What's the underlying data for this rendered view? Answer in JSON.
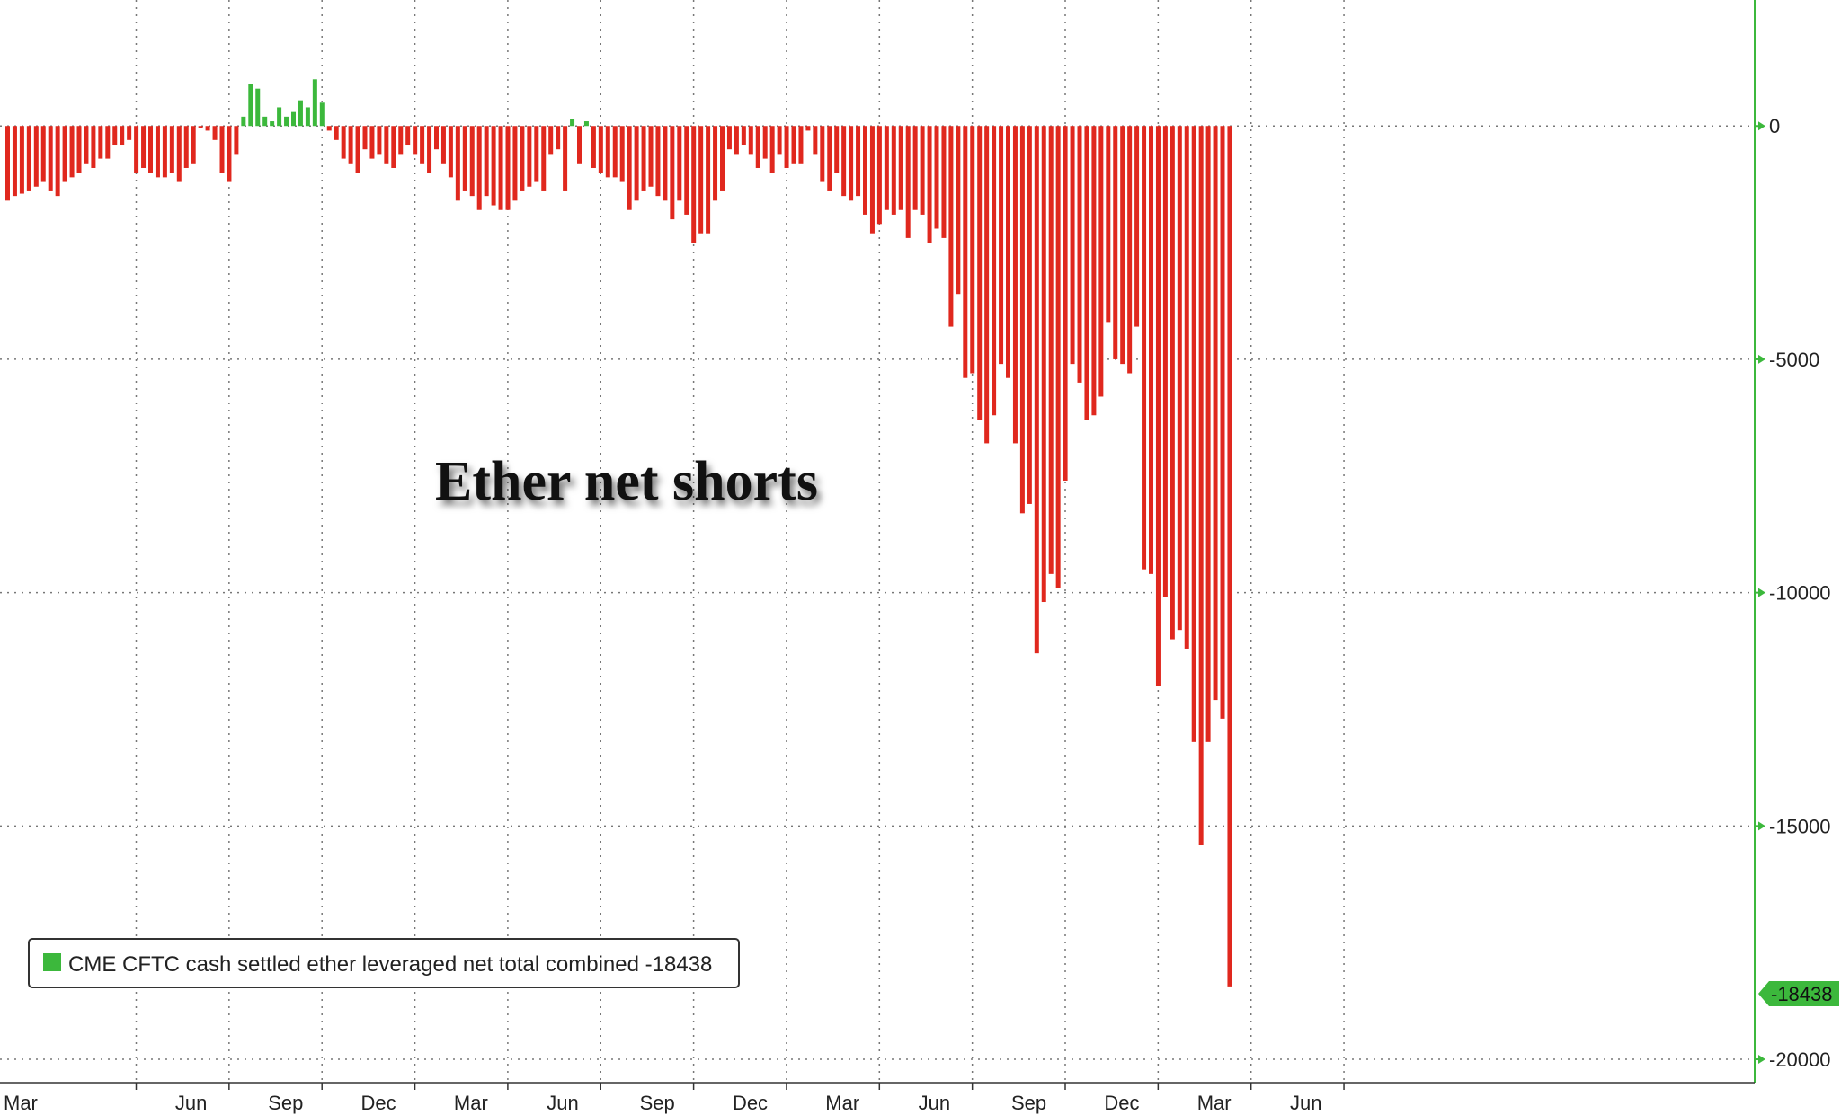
{
  "chart_data": {
    "type": "bar",
    "annotation": "Ether net shorts",
    "legend": {
      "label": "CME CFTC cash settled ether leveraged net total combined -18438",
      "placement": "bottom-left",
      "color": "#3cb83c"
    },
    "colors": {
      "positive": "#3cb83c",
      "negative": "#e0281e",
      "grid": "#777777",
      "axis": "#3cb83c"
    },
    "y_ticks": [
      0,
      -5000,
      -10000,
      -15000,
      -20000
    ],
    "y_tick_labels": [
      "0",
      "-5000",
      "-10000",
      "-15000",
      "-20000"
    ],
    "ylim": [
      -20500,
      2700
    ],
    "last_value_label": "-18438",
    "x_tick_labels": [
      "Mar",
      "Jun",
      "Sep",
      "Dec",
      "Mar",
      "Jun",
      "Sep",
      "Dec",
      "Mar",
      "Jun",
      "Sep",
      "Dec",
      "Mar",
      "Jun"
    ],
    "x_tick_positions": [
      0,
      13,
      26,
      39,
      52,
      65,
      78,
      91,
      104,
      117,
      130,
      143,
      156,
      169
    ],
    "values": [
      -1600,
      -1500,
      -1450,
      -1400,
      -1300,
      -1200,
      -1400,
      -1500,
      -1200,
      -1100,
      -1000,
      -800,
      -900,
      -700,
      -700,
      -400,
      -400,
      -300,
      -1000,
      -900,
      -1000,
      -1100,
      -1100,
      -1000,
      -1200,
      -900,
      -800,
      -50,
      -100,
      -300,
      -1000,
      -1200,
      -600,
      200,
      900,
      800,
      200,
      100,
      400,
      200,
      300,
      550,
      400,
      1000,
      500,
      -100,
      -300,
      -700,
      -800,
      -1000,
      -500,
      -700,
      -600,
      -800,
      -900,
      -600,
      -400,
      -600,
      -800,
      -1000,
      -500,
      -800,
      -1100,
      -1600,
      -1400,
      -1500,
      -1800,
      -1500,
      -1700,
      -1800,
      -1800,
      -1600,
      -1400,
      -1300,
      -1200,
      -1400,
      -600,
      -500,
      -1400,
      150,
      -800,
      100,
      -900,
      -1000,
      -1100,
      -1100,
      -1200,
      -1800,
      -1600,
      -1400,
      -1300,
      -1500,
      -1600,
      -2000,
      -1600,
      -1900,
      -2500,
      -2300,
      -2300,
      -1600,
      -1400,
      -500,
      -600,
      -400,
      -600,
      -900,
      -700,
      -1000,
      -600,
      -900,
      -800,
      -800,
      -100,
      -600,
      -1200,
      -1400,
      -1000,
      -1500,
      -1600,
      -1500,
      -1900,
      -2300,
      -2100,
      -1800,
      -1900,
      -1800,
      -2400,
      -1800,
      -1900,
      -2500,
      -2200,
      -2400,
      -4300,
      -3600,
      -5400,
      -5300,
      -6300,
      -6800,
      -6200,
      -5100,
      -5400,
      -6800,
      -8300,
      -8100,
      -11300,
      -10200,
      -9600,
      -9900,
      -7600,
      -5100,
      -5500,
      -6300,
      -6200,
      -5800,
      -4200,
      -5000,
      -5100,
      -5300,
      -4300,
      -9500,
      -9600,
      -12000,
      -10100,
      -11000,
      -10800,
      -11200,
      -13200,
      -15400,
      -13200,
      -12300,
      -12700,
      -18438
    ]
  }
}
